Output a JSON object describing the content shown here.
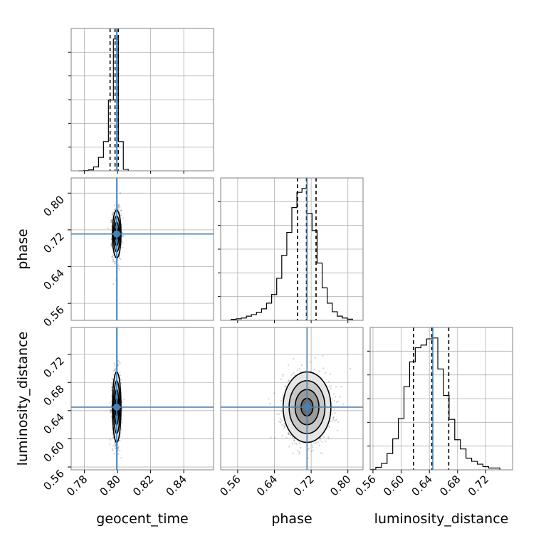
{
  "chart_data": {
    "type": "corner",
    "parameters": [
      "geocent_time",
      "phase",
      "luminosity_distance"
    ],
    "ranges": {
      "geocent_time": [
        0.772,
        0.858
      ],
      "phase": [
        0.523,
        0.833
      ],
      "luminosity_distance": [
        0.556,
        0.758
      ]
    },
    "ticks": {
      "geocent_time": [
        "0.78",
        "0.80",
        "0.82",
        "0.84"
      ],
      "phase": [
        "0.56",
        "0.64",
        "0.72",
        "0.80"
      ],
      "luminosity_distance": [
        "0.56",
        "0.60",
        "0.64",
        "0.68",
        "0.72"
      ]
    },
    "truths": {
      "geocent_time": 0.7995,
      "phase": 0.711,
      "luminosity_distance": 0.6449
    },
    "quantiles": {
      "geocent_time": [
        0.7955,
        0.7985,
        0.8005
      ],
      "phase": [
        0.6903,
        0.7098,
        0.7307
      ],
      "luminosity_distance": [
        0.6175,
        0.6435,
        0.6675
      ]
    },
    "histograms": {
      "geocent_time": {
        "edges": [
          0.7765,
          0.7795,
          0.7825,
          0.7855,
          0.7885,
          0.7915,
          0.7945,
          0.7975,
          0.8005,
          0.8035,
          0.8065
        ],
        "counts": [
          0,
          0.01,
          0.04,
          0.16,
          0.55,
          1.2,
          2.9,
          5.4,
          1.2,
          0.06
        ]
      },
      "phase": {
        "edges": [
          0.546,
          0.557,
          0.568,
          0.579,
          0.59,
          0.601,
          0.612,
          0.623,
          0.634,
          0.645,
          0.656,
          0.667,
          0.678,
          0.689,
          0.7,
          0.711,
          0.722,
          0.733,
          0.744,
          0.755,
          0.766,
          0.777,
          0.788,
          0.799,
          0.81
        ],
        "counts": [
          5,
          8,
          12,
          22,
          30,
          42,
          60,
          90,
          135,
          220,
          340,
          460,
          590,
          670,
          690,
          560,
          470,
          300,
          170,
          90,
          45,
          22,
          12,
          6
        ]
      },
      "luminosity_distance": {
        "edges": [
          0.556,
          0.564,
          0.572,
          0.58,
          0.588,
          0.596,
          0.604,
          0.612,
          0.62,
          0.628,
          0.636,
          0.644,
          0.652,
          0.66,
          0.668,
          0.676,
          0.684,
          0.692,
          0.7,
          0.708,
          0.716,
          0.724,
          0.74
        ],
        "counts": [
          2,
          14,
          36,
          92,
          175,
          290,
          470,
          610,
          690,
          705,
          740,
          745,
          570,
          420,
          285,
          170,
          118,
          66,
          48,
          32,
          18,
          10
        ]
      }
    },
    "scatter_params": {
      "geocent_time": {
        "mean": 0.7995,
        "sd": 0.0013
      },
      "phase": {
        "mean": 0.711,
        "sd": 0.026
      },
      "luminosity_distance": {
        "mean": 0.6449,
        "sd": 0.025
      }
    },
    "contour_levels": [
      0.5,
      1.0,
      1.5,
      2.0
    ],
    "axis_labels": {
      "geocent_time": "geocent_time",
      "phase": "phase",
      "luminosity_distance": "luminosity_distance"
    },
    "colors": {
      "truth": "#4682b4",
      "hist": "#000000",
      "grid": "#b0b0b0",
      "scatter": "#000000"
    }
  }
}
